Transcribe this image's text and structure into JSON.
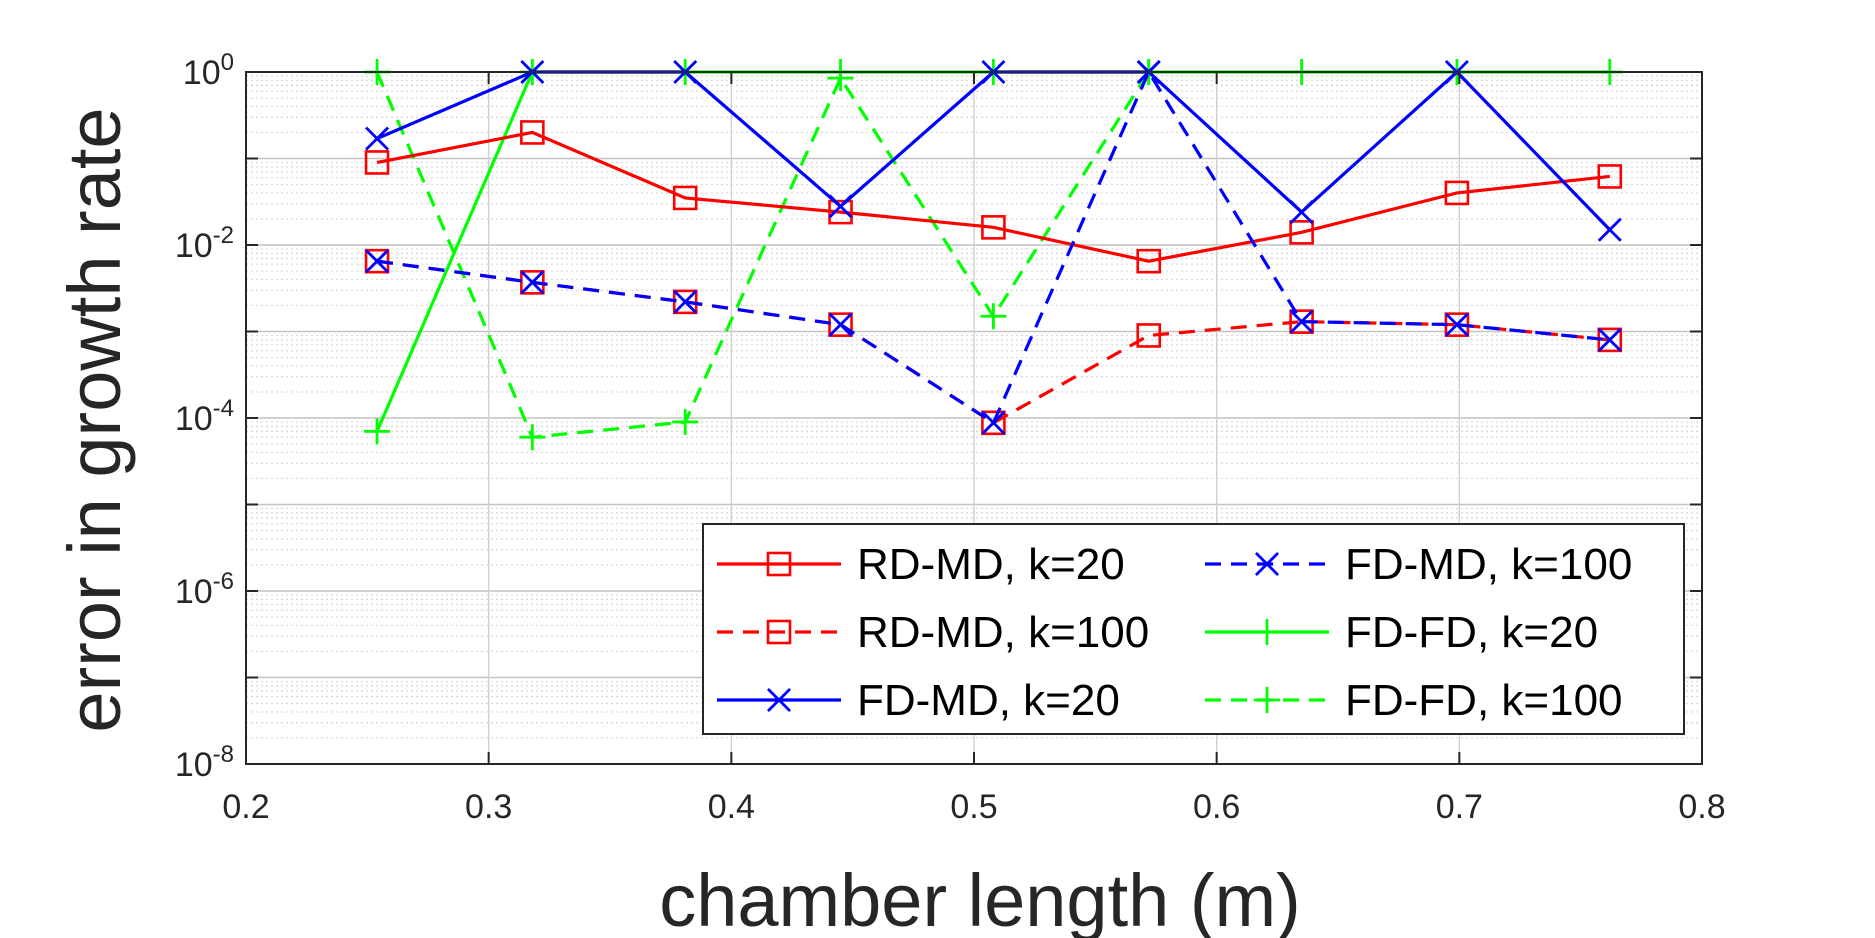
{
  "chart_data": {
    "type": "line",
    "xlabel": "chamber length (m)",
    "ylabel": "error in growth rate",
    "xlim": [
      0.2,
      0.8
    ],
    "ylim": [
      1e-08,
      1
    ],
    "yscale": "log",
    "grid": true,
    "minor_grid": true,
    "legend_position": "bottom-right",
    "x_ticks": [
      "0.2",
      "0.3",
      "0.4",
      "0.5",
      "0.6",
      "0.7",
      "0.8"
    ],
    "y_ticks": [
      {
        "base": "10",
        "exp": "0"
      },
      {
        "base": "10",
        "exp": "-2"
      },
      {
        "base": "10",
        "exp": "-4"
      },
      {
        "base": "10",
        "exp": "-6"
      },
      {
        "base": "10",
        "exp": "-8"
      }
    ],
    "x": [
      0.254,
      0.318,
      0.381,
      0.445,
      0.508,
      0.572,
      0.635,
      0.699,
      0.762
    ],
    "series": [
      {
        "name": "RD-MD, k=20",
        "color": "#ff0000",
        "dash": "solid",
        "marker": "square",
        "values": [
          0.09,
          0.2,
          0.035,
          0.024,
          0.016,
          0.0065,
          0.014,
          0.04,
          0.062
        ]
      },
      {
        "name": "RD-MD, k=100",
        "color": "#ff0000",
        "dash": "dashed",
        "marker": "square",
        "values": [
          0.0065,
          0.0037,
          0.0022,
          0.0012,
          8.8e-05,
          0.0009,
          0.0013,
          0.0012,
          0.0008
        ]
      },
      {
        "name": "FD-MD, k=20",
        "color": "#0000ff",
        "dash": "solid",
        "marker": "x",
        "values": [
          0.17,
          1.0,
          1.0,
          0.028,
          1.0,
          1.0,
          0.024,
          1.0,
          0.015
        ]
      },
      {
        "name": "FD-MD, k=100",
        "color": "#0000ff",
        "dash": "dashed",
        "marker": "x",
        "values": [
          0.0065,
          0.0037,
          0.0022,
          0.0012,
          8.8e-05,
          1.0,
          0.0013,
          0.0012,
          0.0008
        ]
      },
      {
        "name": "FD-FD, k=20",
        "color": "#00ff00",
        "dash": "solid",
        "marker": "plus",
        "values": [
          7e-05,
          1.0,
          1.0,
          1.0,
          1.0,
          1.0,
          1.0,
          1.0,
          1.0
        ]
      },
      {
        "name": "FD-FD, k=100",
        "color": "#00ff00",
        "dash": "dashed",
        "marker": "plus",
        "values": [
          1.0,
          6e-05,
          9e-05,
          0.85,
          0.0015,
          1.0,
          null,
          null,
          null
        ]
      }
    ]
  }
}
